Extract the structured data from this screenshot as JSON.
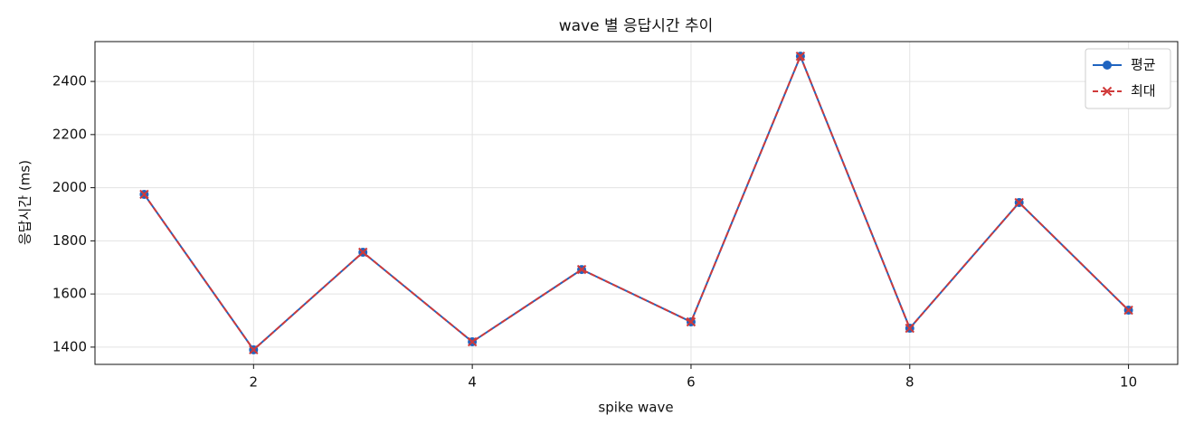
{
  "chart_data": {
    "type": "line",
    "title": "wave 별 응답시간 추이",
    "xlabel": "spike wave",
    "ylabel": "응답시간 (ms)",
    "x": [
      1,
      2,
      3,
      4,
      5,
      6,
      7,
      8,
      9,
      10
    ],
    "series": [
      {
        "name": "평균",
        "color": "#1f64c0",
        "marker": "o",
        "linestyle": "solid",
        "values": [
          1975,
          1390,
          1757,
          1420,
          1692,
          1495,
          2495,
          1471,
          1944,
          1539
        ]
      },
      {
        "name": "최대",
        "color": "#d03a3a",
        "marker": "x",
        "linestyle": "dashed",
        "values": [
          1975,
          1390,
          1757,
          1420,
          1692,
          1495,
          2495,
          1471,
          1944,
          1539
        ]
      }
    ],
    "xlim": [
      0.55,
      10.45
    ],
    "ylim": [
      1335,
      2550
    ],
    "xticks": [
      2,
      4,
      6,
      8,
      10
    ],
    "yticks": [
      1400,
      1600,
      1800,
      2000,
      2200,
      2400
    ],
    "grid": true,
    "legend": "upper right"
  }
}
